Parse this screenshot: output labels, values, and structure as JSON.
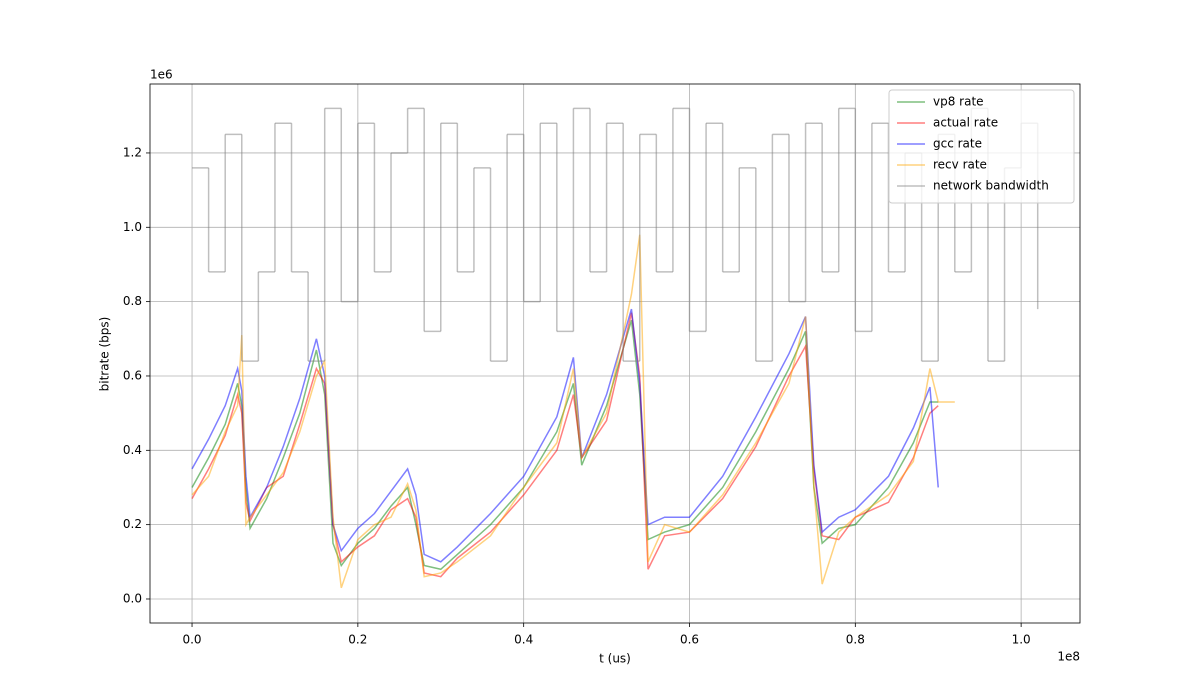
{
  "chart_data": {
    "type": "line",
    "xlabel": "t (us)",
    "ylabel": "bitrate (bps)",
    "x_offset_label": "1e8",
    "y_offset_label": "1e6",
    "xlim": [
      -0.0507,
      1.071
    ],
    "ylim": [
      -0.0646,
      1.3855
    ],
    "xticks": [
      {
        "value": 0,
        "label": "0.0"
      },
      0.2,
      0.4,
      0.6,
      0.8,
      {
        "value": 1,
        "label": "1.0"
      }
    ],
    "yticks": [
      {
        "value": 0,
        "label": "0.0"
      },
      0.2,
      0.4,
      0.6,
      0.8,
      {
        "value": 1,
        "label": "1.0"
      },
      1.2
    ],
    "grid": true,
    "legend": "upper right",
    "opacity": 0.5,
    "series": [
      {
        "name": "vp8 rate",
        "color": "#008000",
        "x": [
          0,
          0.02,
          0.04,
          0.055,
          0.06,
          0.065,
          0.07,
          0.09,
          0.11,
          0.13,
          0.15,
          0.16,
          0.17,
          0.18,
          0.2,
          0.22,
          0.24,
          0.26,
          0.27,
          0.28,
          0.3,
          0.32,
          0.36,
          0.4,
          0.44,
          0.46,
          0.47,
          0.5,
          0.53,
          0.54,
          0.55,
          0.57,
          0.6,
          0.64,
          0.68,
          0.72,
          0.74,
          0.75,
          0.76,
          0.78,
          0.8,
          0.84,
          0.87,
          0.89,
          0.9
        ],
        "values": [
          0.3,
          0.38,
          0.47,
          0.58,
          0.52,
          0.3,
          0.19,
          0.27,
          0.38,
          0.5,
          0.67,
          0.55,
          0.15,
          0.09,
          0.15,
          0.19,
          0.25,
          0.3,
          0.2,
          0.09,
          0.08,
          0.12,
          0.2,
          0.3,
          0.45,
          0.58,
          0.36,
          0.52,
          0.75,
          0.55,
          0.16,
          0.18,
          0.2,
          0.3,
          0.45,
          0.62,
          0.72,
          0.3,
          0.15,
          0.19,
          0.2,
          0.3,
          0.42,
          0.53,
          0.53
        ]
      },
      {
        "name": "actual rate",
        "color": "#ff0000",
        "x": [
          0,
          0.02,
          0.04,
          0.055,
          0.06,
          0.065,
          0.07,
          0.09,
          0.11,
          0.13,
          0.15,
          0.16,
          0.17,
          0.18,
          0.2,
          0.22,
          0.24,
          0.26,
          0.27,
          0.28,
          0.3,
          0.32,
          0.36,
          0.4,
          0.44,
          0.46,
          0.47,
          0.5,
          0.53,
          0.54,
          0.55,
          0.57,
          0.6,
          0.64,
          0.68,
          0.72,
          0.74,
          0.75,
          0.76,
          0.78,
          0.8,
          0.84,
          0.87,
          0.89,
          0.9
        ],
        "values": [
          0.27,
          0.35,
          0.44,
          0.55,
          0.5,
          0.26,
          0.21,
          0.3,
          0.33,
          0.47,
          0.62,
          0.58,
          0.2,
          0.1,
          0.14,
          0.17,
          0.24,
          0.27,
          0.22,
          0.07,
          0.06,
          0.11,
          0.18,
          0.28,
          0.4,
          0.55,
          0.38,
          0.48,
          0.77,
          0.6,
          0.08,
          0.17,
          0.18,
          0.27,
          0.41,
          0.6,
          0.68,
          0.35,
          0.17,
          0.16,
          0.22,
          0.26,
          0.38,
          0.5,
          0.52
        ]
      },
      {
        "name": "gcc rate",
        "color": "#0000ff",
        "x": [
          0,
          0.02,
          0.04,
          0.055,
          0.06,
          0.065,
          0.07,
          0.09,
          0.11,
          0.13,
          0.15,
          0.16,
          0.17,
          0.18,
          0.2,
          0.22,
          0.24,
          0.26,
          0.27,
          0.28,
          0.3,
          0.32,
          0.36,
          0.4,
          0.44,
          0.46,
          0.47,
          0.5,
          0.53,
          0.54,
          0.55,
          0.57,
          0.6,
          0.64,
          0.68,
          0.72,
          0.74,
          0.75,
          0.76,
          0.78,
          0.8,
          0.84,
          0.87,
          0.89,
          0.9
        ],
        "values": [
          0.35,
          0.43,
          0.52,
          0.62,
          0.56,
          0.33,
          0.22,
          0.3,
          0.41,
          0.54,
          0.7,
          0.6,
          0.2,
          0.13,
          0.19,
          0.23,
          0.29,
          0.35,
          0.28,
          0.12,
          0.1,
          0.14,
          0.23,
          0.33,
          0.49,
          0.65,
          0.38,
          0.55,
          0.78,
          0.58,
          0.2,
          0.22,
          0.22,
          0.33,
          0.49,
          0.66,
          0.76,
          0.36,
          0.18,
          0.22,
          0.24,
          0.33,
          0.46,
          0.57,
          0.3
        ]
      },
      {
        "name": "recv rate",
        "color": "#ffa500",
        "x": [
          0,
          0.02,
          0.04,
          0.055,
          0.06,
          0.065,
          0.07,
          0.09,
          0.11,
          0.13,
          0.15,
          0.16,
          0.17,
          0.18,
          0.2,
          0.22,
          0.24,
          0.26,
          0.27,
          0.28,
          0.3,
          0.32,
          0.36,
          0.4,
          0.44,
          0.46,
          0.47,
          0.5,
          0.53,
          0.54,
          0.55,
          0.57,
          0.6,
          0.64,
          0.68,
          0.72,
          0.74,
          0.75,
          0.76,
          0.78,
          0.8,
          0.84,
          0.87,
          0.89,
          0.9,
          0.92
        ],
        "values": [
          0.28,
          0.33,
          0.45,
          0.52,
          0.71,
          0.2,
          0.22,
          0.28,
          0.34,
          0.45,
          0.6,
          0.64,
          0.22,
          0.03,
          0.16,
          0.2,
          0.22,
          0.31,
          0.24,
          0.06,
          0.07,
          0.1,
          0.17,
          0.3,
          0.42,
          0.62,
          0.38,
          0.5,
          0.82,
          0.98,
          0.1,
          0.2,
          0.18,
          0.28,
          0.42,
          0.58,
          0.76,
          0.3,
          0.04,
          0.18,
          0.22,
          0.28,
          0.37,
          0.62,
          0.53,
          0.53
        ]
      },
      {
        "name": "network bandwidth",
        "color": "#808080",
        "drawstyle": "steps-post",
        "x": [
          0,
          0.02,
          0.04,
          0.06,
          0.08,
          0.1,
          0.12,
          0.14,
          0.16,
          0.18,
          0.2,
          0.22,
          0.24,
          0.26,
          0.28,
          0.3,
          0.32,
          0.34,
          0.36,
          0.38,
          0.4,
          0.42,
          0.44,
          0.46,
          0.48,
          0.5,
          0.52,
          0.54,
          0.56,
          0.58,
          0.6,
          0.62,
          0.64,
          0.66,
          0.68,
          0.7,
          0.72,
          0.74,
          0.76,
          0.78,
          0.8,
          0.82,
          0.84,
          0.86,
          0.88,
          0.9,
          0.92,
          0.94,
          0.96,
          0.98,
          1,
          1.02
        ],
        "values": [
          1.16,
          0.88,
          1.25,
          0.64,
          0.88,
          1.28,
          0.88,
          0.64,
          1.32,
          0.8,
          1.28,
          0.88,
          1.2,
          1.32,
          0.72,
          1.28,
          0.88,
          1.16,
          0.64,
          1.25,
          0.8,
          1.28,
          0.72,
          1.32,
          0.88,
          1.28,
          0.64,
          1.25,
          0.88,
          1.32,
          0.72,
          1.28,
          0.88,
          1.16,
          0.64,
          1.25,
          0.8,
          1.28,
          0.88,
          1.32,
          0.72,
          1.28,
          0.88,
          1.2,
          0.64,
          1.25,
          0.88,
          1.32,
          0.64,
          1.16,
          1.28,
          0.78
        ]
      }
    ]
  }
}
